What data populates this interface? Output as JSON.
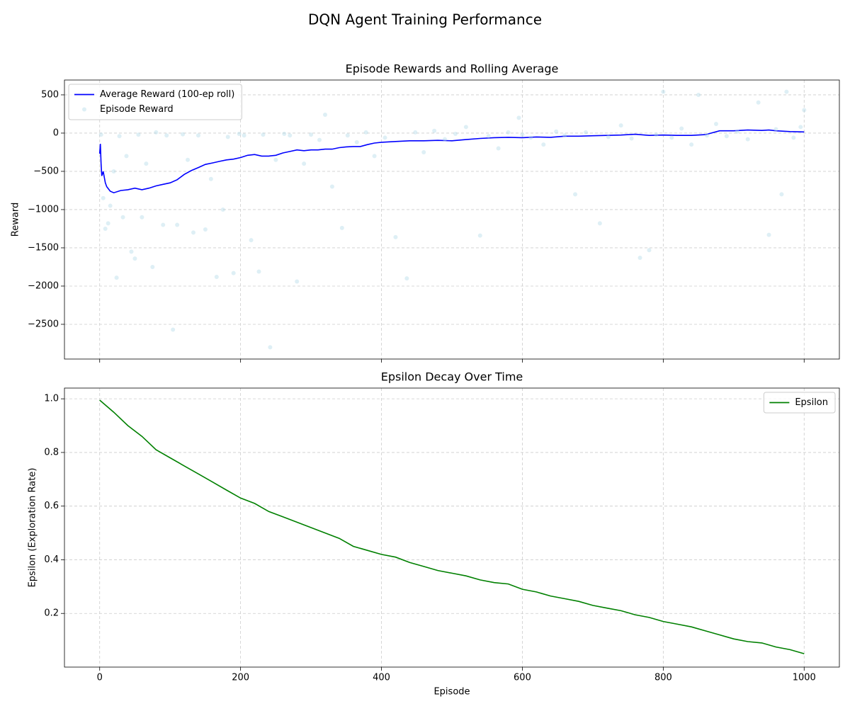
{
  "title": "DQN Agent Training Performance",
  "chart_data": [
    {
      "type": "line",
      "title": "Episode Rewards and Rolling Average",
      "ylabel": "Reward",
      "xlim": [
        -50,
        1050
      ],
      "ylim": [
        -2954,
        694
      ],
      "xticks": [
        0,
        200,
        400,
        600,
        800,
        1000
      ],
      "show_xtick_labels": false,
      "yticks": [
        {
          "value": -2500,
          "label": "−2500"
        },
        {
          "value": -2000,
          "label": "−2000"
        },
        {
          "value": -1500,
          "label": "−1500"
        },
        {
          "value": -1000,
          "label": "−1000"
        },
        {
          "value": -500,
          "label": "−500"
        },
        0,
        500
      ],
      "grid": true,
      "legend": "upper left",
      "series": [
        {
          "name": "Average Reward (100-ep roll)",
          "type": "line",
          "color": "#0000ff",
          "x": [
            0,
            1,
            2,
            3,
            5,
            8,
            10,
            15,
            20,
            30,
            40,
            50,
            60,
            70,
            80,
            90,
            100,
            110,
            120,
            130,
            140,
            150,
            160,
            170,
            180,
            190,
            200,
            210,
            220,
            230,
            240,
            250,
            260,
            270,
            280,
            290,
            300,
            310,
            320,
            330,
            340,
            350,
            360,
            370,
            380,
            390,
            400,
            420,
            440,
            460,
            480,
            500,
            520,
            540,
            560,
            580,
            600,
            620,
            640,
            660,
            680,
            700,
            720,
            740,
            760,
            780,
            800,
            820,
            840,
            860,
            880,
            900,
            920,
            940,
            950,
            960,
            980,
            1000
          ],
          "values": [
            -270,
            -140,
            -400,
            -560,
            -500,
            -650,
            -700,
            -760,
            -780,
            -750,
            -740,
            -720,
            -740,
            -720,
            -690,
            -670,
            -650,
            -610,
            -540,
            -490,
            -450,
            -410,
            -390,
            -370,
            -350,
            -340,
            -320,
            -290,
            -280,
            -300,
            -300,
            -290,
            -260,
            -240,
            -220,
            -230,
            -220,
            -220,
            -210,
            -210,
            -190,
            -180,
            -175,
            -175,
            -150,
            -130,
            -120,
            -110,
            -100,
            -100,
            -95,
            -100,
            -85,
            -70,
            -60,
            -55,
            -60,
            -50,
            -55,
            -40,
            -40,
            -35,
            -30,
            -25,
            -15,
            -30,
            -25,
            -30,
            -30,
            -20,
            30,
            30,
            40,
            35,
            40,
            30,
            20,
            15
          ]
        },
        {
          "name": "Episode Reward",
          "type": "scatter",
          "color": "#add8e6",
          "x": [
            2,
            5,
            8,
            12,
            15,
            20,
            24,
            28,
            33,
            38,
            45,
            50,
            55,
            60,
            66,
            75,
            80,
            90,
            95,
            104,
            110,
            118,
            125,
            133,
            140,
            150,
            158,
            166,
            175,
            182,
            190,
            198,
            205,
            215,
            226,
            232,
            242,
            250,
            262,
            270,
            280,
            290,
            300,
            312,
            320,
            330,
            344,
            352,
            365,
            378,
            390,
            405,
            420,
            436,
            448,
            460,
            475,
            490,
            505,
            520,
            540,
            552,
            566,
            580,
            595,
            600,
            612,
            630,
            648,
            660,
            675,
            690,
            710,
            722,
            740,
            755,
            767,
            780,
            790,
            800,
            812,
            826,
            840,
            850,
            862,
            875,
            890,
            905,
            920,
            935,
            950,
            960,
            968,
            975,
            985,
            995,
            1000
          ],
          "values": [
            -20,
            -850,
            -1250,
            -1180,
            -950,
            -500,
            -1890,
            -40,
            -1100,
            -300,
            -1550,
            -1640,
            -20,
            -1100,
            -400,
            -1750,
            10,
            -1200,
            -30,
            -2570,
            -1200,
            -15,
            -350,
            -1300,
            -30,
            -1260,
            -600,
            -1880,
            -1000,
            -50,
            -1830,
            -10,
            -30,
            -1400,
            -1810,
            -20,
            -2800,
            -350,
            -10,
            -30,
            -1940,
            -400,
            -20,
            -90,
            240,
            -700,
            -1240,
            -30,
            -120,
            10,
            -300,
            -60,
            -1360,
            -1900,
            10,
            -250,
            30,
            -80,
            -10,
            80,
            -1340,
            -40,
            -200,
            10,
            200,
            -20,
            -60,
            -150,
            20,
            -30,
            -800,
            10,
            -1180,
            -50,
            100,
            -70,
            -1630,
            -1530,
            -20,
            540,
            -60,
            60,
            -150,
            500,
            -30,
            120,
            -40,
            20,
            -80,
            400,
            -1330,
            50,
            -800,
            540,
            -60,
            80,
            300
          ]
        }
      ]
    },
    {
      "type": "line",
      "title": "Epsilon Decay Over Time",
      "xlabel": "Episode",
      "ylabel": "Epsilon (Exploration Rate)",
      "xlim": [
        -50,
        1050
      ],
      "ylim": [
        0.0,
        1.04
      ],
      "xticks": [
        0,
        200,
        400,
        600,
        800,
        1000
      ],
      "show_xtick_labels": true,
      "yticks": [
        0.2,
        0.4,
        0.6,
        0.8,
        {
          "value": 1,
          "label": "1.0"
        }
      ],
      "grid": true,
      "legend": "upper right",
      "series": [
        {
          "name": "Epsilon",
          "type": "line",
          "color": "#008000",
          "x": [
            0,
            20,
            40,
            60,
            80,
            100,
            120,
            140,
            160,
            180,
            200,
            220,
            240,
            260,
            280,
            300,
            320,
            340,
            360,
            380,
            400,
            420,
            440,
            460,
            480,
            500,
            520,
            540,
            560,
            580,
            600,
            620,
            640,
            660,
            680,
            700,
            720,
            740,
            760,
            780,
            800,
            820,
            840,
            860,
            880,
            900,
            920,
            940,
            960,
            980,
            1000
          ],
          "values": [
            0.995,
            0.95,
            0.9,
            0.86,
            0.81,
            0.78,
            0.75,
            0.72,
            0.69,
            0.66,
            0.63,
            0.61,
            0.58,
            0.56,
            0.54,
            0.52,
            0.5,
            0.48,
            0.45,
            0.435,
            0.42,
            0.41,
            0.39,
            0.375,
            0.36,
            0.35,
            0.34,
            0.325,
            0.315,
            0.31,
            0.29,
            0.28,
            0.265,
            0.255,
            0.245,
            0.23,
            0.22,
            0.21,
            0.195,
            0.185,
            0.17,
            0.16,
            0.15,
            0.135,
            0.12,
            0.105,
            0.095,
            0.09,
            0.075,
            0.065,
            0.05
          ]
        }
      ]
    }
  ]
}
